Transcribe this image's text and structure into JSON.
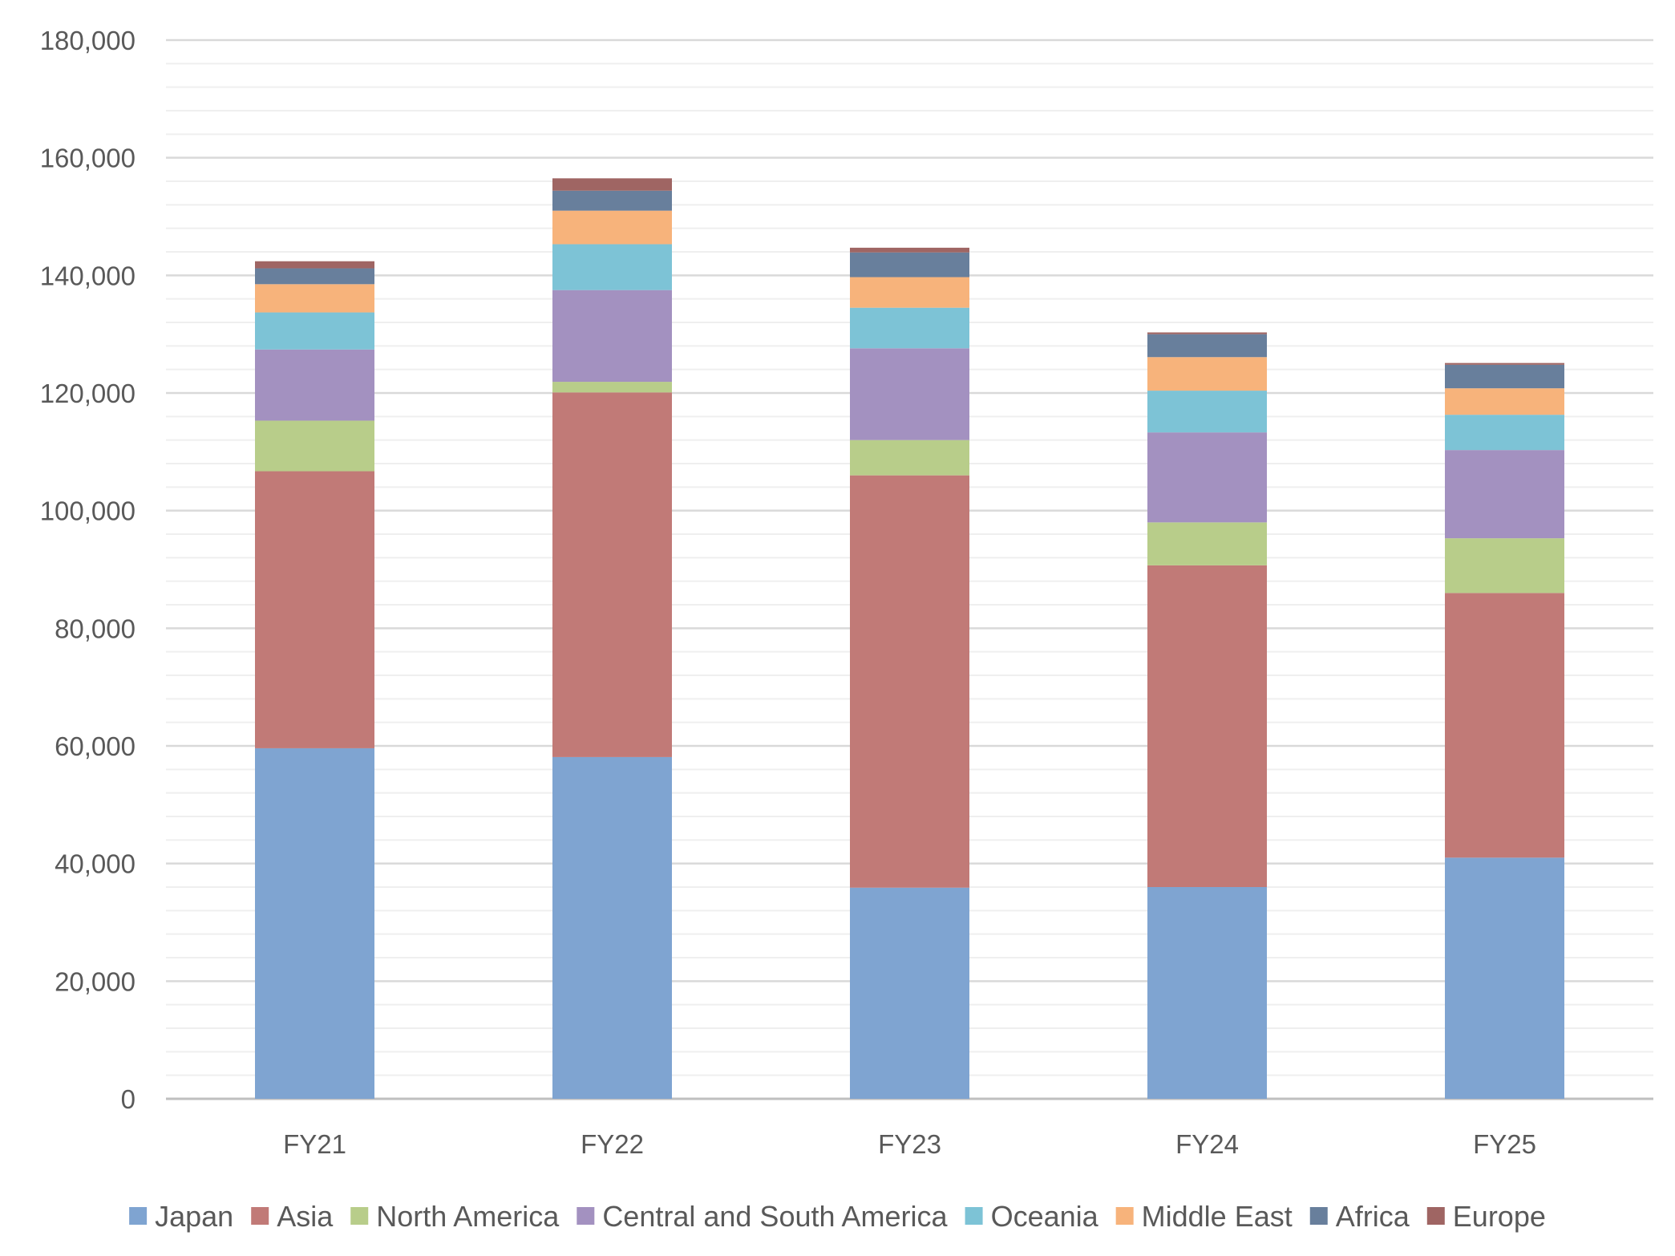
{
  "chart_data": {
    "type": "bar",
    "stacked": true,
    "categories": [
      "FY21",
      "FY22",
      "FY23",
      "FY24",
      "FY25"
    ],
    "series": [
      {
        "name": "Japan",
        "color": "#7fa4d1",
        "values": [
          59600,
          58100,
          35900,
          36000,
          41000
        ]
      },
      {
        "name": "Asia",
        "color": "#c17a77",
        "values": [
          47100,
          62000,
          70100,
          54700,
          45000
        ]
      },
      {
        "name": "North America",
        "color": "#b8cd8a",
        "values": [
          8600,
          1800,
          6000,
          7300,
          9300
        ]
      },
      {
        "name": "Central and South America",
        "color": "#a391c0",
        "values": [
          12100,
          15600,
          15600,
          15300,
          15000
        ]
      },
      {
        "name": "Oceania",
        "color": "#7dc3d6",
        "values": [
          6300,
          7800,
          6900,
          7100,
          6000
        ]
      },
      {
        "name": "Middle East",
        "color": "#f7b37b",
        "values": [
          4800,
          5700,
          5200,
          5700,
          4500
        ]
      },
      {
        "name": "Africa",
        "color": "#687f9c",
        "values": [
          2700,
          3400,
          4200,
          3900,
          4000
        ]
      },
      {
        "name": "Europe",
        "color": "#9f6563",
        "values": [
          1200,
          2100,
          800,
          300,
          300
        ]
      }
    ],
    "ylim": [
      0,
      180000
    ],
    "yticks": [
      0,
      20000,
      40000,
      60000,
      80000,
      100000,
      120000,
      140000,
      160000,
      180000
    ],
    "ytick_labels": [
      "0",
      "20,000",
      "40,000",
      "60,000",
      "80,000",
      "100,000",
      "120,000",
      "140,000",
      "160,000",
      "180,000"
    ],
    "minor_grid_step": 4000,
    "grid": true,
    "legend_position": "bottom",
    "title": "",
    "xlabel": "",
    "ylabel": ""
  }
}
